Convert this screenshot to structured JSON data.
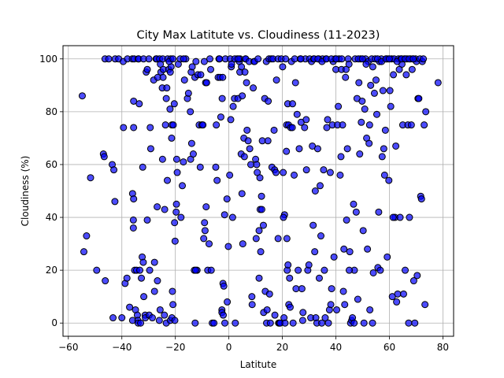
{
  "chart_data": {
    "type": "scatter",
    "title": "City Max Latitute vs. Cloudiness (11-2023)",
    "xlabel": "Latitute",
    "ylabel": "Cloudiness (%)",
    "xlim": [
      -62,
      84
    ],
    "ylim": [
      -5,
      105
    ],
    "xticks": [
      -60,
      -40,
      -20,
      0,
      20,
      40,
      60,
      80
    ],
    "yticks": [
      0,
      20,
      40,
      60,
      80,
      100
    ],
    "grid": true,
    "marker_color": "#0000ff",
    "edge_color": "#000000",
    "alpha": 0.7,
    "points": [
      [
        -54.8,
        86
      ],
      [
        -54.2,
        27
      ],
      [
        -53.2,
        33
      ],
      [
        -51.7,
        55
      ],
      [
        -49.4,
        20
      ],
      [
        -46.9,
        64
      ],
      [
        -46.6,
        63
      ],
      [
        -46.2,
        16
      ],
      [
        -46.3,
        100
      ],
      [
        -44.9,
        100
      ],
      [
        -43.6,
        60
      ],
      [
        -43.0,
        58
      ],
      [
        -42.6,
        46
      ],
      [
        -43.3,
        2
      ],
      [
        -42.5,
        100
      ],
      [
        -41.2,
        100
      ],
      [
        -40.0,
        2
      ],
      [
        -39.4,
        74
      ],
      [
        -39.5,
        99
      ],
      [
        -38.8,
        15
      ],
      [
        -38.1,
        17
      ],
      [
        -37.9,
        100
      ],
      [
        -36.1,
        100
      ],
      [
        -35.4,
        100
      ],
      [
        -37.1,
        6
      ],
      [
        -36.0,
        49
      ],
      [
        -35.6,
        47
      ],
      [
        -35.7,
        36
      ],
      [
        -35.7,
        39
      ],
      [
        -36.0,
        1
      ],
      [
        -35.6,
        74
      ],
      [
        -35.6,
        84
      ],
      [
        -35.2,
        20
      ],
      [
        -34.9,
        5
      ],
      [
        -34.5,
        20
      ],
      [
        -34.2,
        3
      ],
      [
        -34.0,
        1
      ],
      [
        -33.9,
        100
      ],
      [
        -33.7,
        100
      ],
      [
        -33.5,
        83
      ],
      [
        -33.9,
        0
      ],
      [
        -33.3,
        20
      ],
      [
        -33.0,
        0
      ],
      [
        -32.7,
        17
      ],
      [
        -32.4,
        25
      ],
      [
        -32.0,
        23
      ],
      [
        -32.2,
        59
      ],
      [
        -31.9,
        100
      ],
      [
        -31.8,
        10
      ],
      [
        -31.3,
        3
      ],
      [
        -31.2,
        2
      ],
      [
        -30.9,
        95
      ],
      [
        -30.5,
        96
      ],
      [
        -29.6,
        20
      ],
      [
        -30.5,
        39
      ],
      [
        -29.9,
        100
      ],
      [
        -29.8,
        3
      ],
      [
        -29.2,
        66
      ],
      [
        -29.4,
        74
      ],
      [
        -28.6,
        2
      ],
      [
        -28.1,
        92
      ],
      [
        -27.8,
        23
      ],
      [
        -27.8,
        12
      ],
      [
        -27.2,
        100
      ],
      [
        -27.0,
        100
      ],
      [
        -26.8,
        44
      ],
      [
        -26.7,
        16
      ],
      [
        -26.6,
        93
      ],
      [
        -25.9,
        100
      ],
      [
        -26.0,
        1
      ],
      [
        -25.7,
        5
      ],
      [
        -25.6,
        98
      ],
      [
        -25.4,
        95
      ],
      [
        -24.9,
        89
      ],
      [
        -24.8,
        62
      ],
      [
        -24.6,
        93
      ],
      [
        -24.7,
        100
      ],
      [
        -24.5,
        96
      ],
      [
        -24.1,
        3
      ],
      [
        -24.0,
        43
      ],
      [
        -23.7,
        75
      ],
      [
        -23.4,
        85
      ],
      [
        -23.2,
        89
      ],
      [
        -23.0,
        54
      ],
      [
        -22.9,
        100
      ],
      [
        -23.4,
        0
      ],
      [
        -22.5,
        96
      ],
      [
        -22.0,
        81
      ],
      [
        -21.9,
        1
      ],
      [
        -21.9,
        95
      ],
      [
        -21.7,
        100
      ],
      [
        -21.6,
        97
      ],
      [
        -21.4,
        70
      ],
      [
        -21.3,
        75
      ],
      [
        -21.1,
        12
      ],
      [
        -20.9,
        7
      ],
      [
        -20.8,
        75
      ],
      [
        -21.3,
        2
      ],
      [
        -20.4,
        83
      ],
      [
        -20.3,
        38
      ],
      [
        -20.1,
        31
      ],
      [
        -20.2,
        1
      ],
      [
        -19.7,
        42
      ],
      [
        -19.6,
        45
      ],
      [
        -19.5,
        62
      ],
      [
        -19.3,
        57
      ],
      [
        -18.9,
        98
      ],
      [
        -17.9,
        40
      ],
      [
        -17.4,
        52
      ],
      [
        -17.0,
        61
      ],
      [
        -16.6,
        92
      ],
      [
        -16.1,
        100
      ],
      [
        -15.5,
        85
      ],
      [
        -15.1,
        87
      ],
      [
        -14.4,
        80
      ],
      [
        -14.3,
        62
      ],
      [
        -14.1,
        95
      ],
      [
        -13.9,
        68
      ],
      [
        -13.7,
        97
      ],
      [
        -13.3,
        64
      ],
      [
        -12.7,
        93
      ],
      [
        -12.6,
        0
      ],
      [
        -12.3,
        99
      ],
      [
        -11.9,
        20
      ],
      [
        -11.6,
        94
      ],
      [
        -11.1,
        75
      ],
      [
        -10.7,
        59
      ],
      [
        -10.5,
        94
      ],
      [
        -10.1,
        75
      ],
      [
        -9.7,
        75
      ],
      [
        -9.4,
        32
      ],
      [
        -9.2,
        99
      ],
      [
        -9.1,
        38
      ],
      [
        -8.9,
        35
      ],
      [
        -8.7,
        91
      ],
      [
        -8.5,
        44
      ],
      [
        -8.3,
        91
      ],
      [
        -7.9,
        20
      ],
      [
        -7.4,
        30
      ],
      [
        -7.1,
        100
      ],
      [
        -6.8,
        96
      ],
      [
        -6.6,
        20
      ],
      [
        -6.2,
        0
      ],
      [
        -5.6,
        0
      ],
      [
        -4.9,
        59
      ],
      [
        -4.4,
        54
      ],
      [
        -4.0,
        93
      ],
      [
        -3.7,
        100
      ],
      [
        -3.3,
        93
      ],
      [
        -3.0,
        78
      ],
      [
        -2.6,
        5
      ],
      [
        -2.6,
        4
      ],
      [
        -2.3,
        93
      ],
      [
        -2.2,
        15
      ],
      [
        -2.1,
        3
      ],
      [
        -1.9,
        14
      ],
      [
        -1.6,
        41
      ],
      [
        -1.5,
        0
      ],
      [
        -1.3,
        100
      ],
      [
        -0.7,
        47
      ],
      [
        -0.6,
        8
      ],
      [
        -0.2,
        29
      ],
      [
        0.5,
        100
      ],
      [
        0.7,
        77
      ],
      [
        0.9,
        97
      ],
      [
        1.0,
        98
      ],
      [
        1.4,
        40
      ],
      [
        1.6,
        82
      ],
      [
        2.1,
        85
      ],
      [
        2.4,
        0
      ],
      [
        3.1,
        100
      ],
      [
        3.4,
        85
      ],
      [
        3.9,
        99
      ],
      [
        4.1,
        95
      ],
      [
        4.2,
        100
      ],
      [
        4.6,
        64
      ],
      [
        4.9,
        49
      ],
      [
        4.7,
        97
      ],
      [
        5.0,
        86
      ],
      [
        5.2,
        30
      ],
      [
        5.6,
        70
      ],
      [
        5.8,
        63
      ],
      [
        6.2,
        100
      ],
      [
        6.3,
        100
      ],
      [
        6.6,
        91
      ],
      [
        6.8,
        73
      ],
      [
        7.2,
        69
      ],
      [
        7.6,
        99
      ],
      [
        7.8,
        66
      ],
      [
        8.2,
        60
      ],
      [
        8.6,
        10
      ],
      [
        8.7,
        7
      ],
      [
        9.1,
        89
      ],
      [
        9.4,
        99
      ],
      [
        9.6,
        99
      ],
      [
        10.0,
        62
      ],
      [
        10.2,
        32
      ],
      [
        10.4,
        60
      ],
      [
        10.6,
        57
      ],
      [
        10.9,
        100
      ],
      [
        11.3,
        35
      ],
      [
        11.3,
        17
      ],
      [
        11.6,
        55
      ],
      [
        11.7,
        43
      ],
      [
        11.9,
        27
      ],
      [
        12.2,
        48
      ],
      [
        12.3,
        43
      ],
      [
        12.9,
        37
      ],
      [
        13.0,
        4
      ],
      [
        13.4,
        85
      ],
      [
        13.6,
        12
      ],
      [
        14.0,
        99
      ],
      [
        14.1,
        0
      ],
      [
        14.3,
        5
      ],
      [
        14.7,
        84
      ],
      [
        15.0,
        100
      ],
      [
        15.2,
        11
      ],
      [
        15.5,
        0
      ],
      [
        15.8,
        100
      ],
      [
        16.1,
        59
      ],
      [
        16.5,
        100
      ],
      [
        16.9,
        73
      ],
      [
        17.1,
        58
      ],
      [
        17.2,
        3
      ],
      [
        17.6,
        57
      ],
      [
        17.8,
        92
      ],
      [
        18.4,
        32
      ],
      [
        18.4,
        100
      ],
      [
        18.6,
        0
      ],
      [
        18.9,
        0
      ],
      [
        19.2,
        0
      ],
      [
        19.6,
        100
      ],
      [
        20.1,
        97
      ],
      [
        20.3,
        57
      ],
      [
        20.6,
        2
      ],
      [
        20.8,
        41
      ],
      [
        21.0,
        0
      ],
      [
        21.2,
        100
      ],
      [
        21.5,
        65
      ],
      [
        21.6,
        75
      ],
      [
        21.7,
        32
      ],
      [
        21.8,
        20
      ],
      [
        22.1,
        22
      ],
      [
        22.3,
        75
      ],
      [
        22.4,
        7
      ],
      [
        22.7,
        17
      ],
      [
        22.9,
        6
      ],
      [
        23.1,
        74
      ],
      [
        23.4,
        99
      ],
      [
        23.7,
        74
      ],
      [
        24.0,
        0
      ],
      [
        24.4,
        56
      ],
      [
        24.6,
        100
      ],
      [
        24.9,
        91
      ],
      [
        25.1,
        13
      ],
      [
        25.5,
        79
      ],
      [
        25.9,
        20
      ],
      [
        26.3,
        66
      ],
      [
        26.7,
        100
      ],
      [
        27.0,
        76
      ],
      [
        27.3,
        13
      ],
      [
        27.6,
        1
      ],
      [
        27.7,
        4
      ],
      [
        28.3,
        74
      ],
      [
        28.6,
        100
      ],
      [
        29.0,
        58
      ],
      [
        29.5,
        20
      ],
      [
        29.9,
        22
      ],
      [
        30.2,
        100
      ],
      [
        30.6,
        2
      ],
      [
        30.9,
        99
      ],
      [
        31.2,
        67
      ],
      [
        31.5,
        37
      ],
      [
        31.7,
        100
      ],
      [
        32.1,
        27
      ],
      [
        32.3,
        50
      ],
      [
        32.5,
        2
      ],
      [
        32.9,
        0
      ],
      [
        33.2,
        66
      ],
      [
        33.6,
        100
      ],
      [
        33.8,
        17
      ],
      [
        34.1,
        52
      ],
      [
        34.4,
        33
      ],
      [
        34.7,
        0
      ],
      [
        35.0,
        100
      ],
      [
        35.4,
        58
      ],
      [
        35.7,
        20
      ],
      [
        36.0,
        2
      ],
      [
        36.3,
        100
      ],
      [
        36.6,
        74
      ],
      [
        36.9,
        77
      ],
      [
        37.2,
        0
      ],
      [
        37.6,
        5
      ],
      [
        37.9,
        57
      ],
      [
        38.1,
        7
      ],
      [
        38.4,
        13
      ],
      [
        38.7,
        75
      ],
      [
        39.0,
        99
      ],
      [
        39.3,
        25
      ],
      [
        39.7,
        100
      ],
      [
        40.0,
        96
      ],
      [
        40.3,
        5
      ],
      [
        40.6,
        75
      ],
      [
        40.9,
        82
      ],
      [
        41.2,
        100
      ],
      [
        41.6,
        56
      ],
      [
        41.9,
        63
      ],
      [
        42.1,
        96
      ],
      [
        42.5,
        75
      ],
      [
        42.8,
        12
      ],
      [
        43.0,
        28
      ],
      [
        43.3,
        7
      ],
      [
        43.6,
        93
      ],
      [
        44.0,
        39
      ],
      [
        44.3,
        66
      ],
      [
        44.6,
        100
      ],
      [
        44.9,
        98
      ],
      [
        45.2,
        27
      ],
      [
        45.5,
        0
      ],
      [
        45.9,
        1
      ],
      [
        46.2,
        2
      ],
      [
        46.6,
        45
      ],
      [
        46.9,
        20
      ],
      [
        47.2,
        100
      ],
      [
        47.6,
        42
      ],
      [
        47.9,
        85
      ],
      [
        48.2,
        9
      ],
      [
        48.6,
        91
      ],
      [
        48.9,
        64
      ],
      [
        49.2,
        100
      ],
      [
        49.5,
        76
      ],
      [
        49.8,
        84
      ],
      [
        50.2,
        35
      ],
      [
        50.5,
        0
      ],
      [
        50.8,
        81
      ],
      [
        51.1,
        100
      ],
      [
        51.5,
        70
      ],
      [
        51.8,
        28
      ],
      [
        52.1,
        99
      ],
      [
        52.4,
        68
      ],
      [
        52.7,
        5
      ],
      [
        53.0,
        90
      ],
      [
        53.4,
        100
      ],
      [
        53.7,
        0
      ],
      [
        54.0,
        19
      ],
      [
        54.4,
        87
      ],
      [
        54.7,
        100
      ],
      [
        55.0,
        92
      ],
      [
        55.3,
        79
      ],
      [
        55.7,
        21
      ],
      [
        56.0,
        42
      ],
      [
        56.3,
        99
      ],
      [
        56.6,
        20
      ],
      [
        57.0,
        100
      ],
      [
        57.3,
        63
      ],
      [
        57.6,
        88
      ],
      [
        57.9,
        66
      ],
      [
        58.2,
        56
      ],
      [
        58.5,
        73
      ],
      [
        58.9,
        100
      ],
      [
        59.2,
        25
      ],
      [
        59.5,
        100
      ],
      [
        59.8,
        54
      ],
      [
        60.2,
        88
      ],
      [
        60.5,
        82
      ],
      [
        60.8,
        100
      ],
      [
        61.1,
        10
      ],
      [
        61.5,
        94
      ],
      [
        61.8,
        100
      ],
      [
        62.1,
        40
      ],
      [
        62.4,
        67
      ],
      [
        62.7,
        8
      ],
      [
        63.1,
        11
      ],
      [
        63.4,
        100
      ],
      [
        63.7,
        96
      ],
      [
        64.0,
        40
      ],
      [
        64.3,
        100
      ],
      [
        64.7,
        98
      ],
      [
        65.0,
        75
      ],
      [
        65.3,
        11
      ],
      [
        65.6,
        100
      ],
      [
        65.9,
        20
      ],
      [
        66.3,
        94
      ],
      [
        66.6,
        100
      ],
      [
        66.9,
        75
      ],
      [
        67.2,
        0
      ],
      [
        67.5,
        40
      ],
      [
        67.9,
        100
      ],
      [
        68.2,
        75
      ],
      [
        68.5,
        96
      ],
      [
        68.8,
        100
      ],
      [
        69.1,
        16
      ],
      [
        69.5,
        0
      ],
      [
        69.8,
        100
      ],
      [
        70.1,
        99
      ],
      [
        70.4,
        18
      ],
      [
        70.7,
        85
      ],
      [
        71.0,
        85
      ],
      [
        71.4,
        100
      ],
      [
        71.7,
        48
      ],
      [
        72.0,
        47
      ],
      [
        72.3,
        99
      ],
      [
        72.7,
        100
      ],
      [
        73.0,
        75
      ],
      [
        73.3,
        7
      ],
      [
        73.6,
        80
      ],
      [
        78.2,
        91
      ],
      [
        -22.3,
        99
      ],
      [
        -20.9,
        100
      ],
      [
        -18.2,
        100
      ],
      [
        -16.9,
        100
      ],
      [
        -12.9,
        20
      ],
      [
        -12.4,
        20
      ],
      [
        -4.7,
        75
      ],
      [
        -3.5,
        100
      ],
      [
        -2.5,
        85
      ],
      [
        0.3,
        56
      ],
      [
        2.2,
        100
      ],
      [
        3.6,
        100
      ],
      [
        6.0,
        95
      ],
      [
        12.5,
        69
      ],
      [
        14.6,
        69
      ],
      [
        20.4,
        40
      ],
      [
        22.0,
        83
      ],
      [
        23.8,
        83
      ],
      [
        26.9,
        100
      ],
      [
        28.9,
        77
      ],
      [
        31.9,
        100
      ],
      [
        33.3,
        100
      ],
      [
        34.8,
        99
      ],
      [
        36.5,
        100
      ],
      [
        38.3,
        100
      ],
      [
        40.1,
        100
      ],
      [
        42.2,
        100
      ],
      [
        43.8,
        96
      ],
      [
        45.0,
        20
      ],
      [
        46.8,
        0
      ],
      [
        48.4,
        100
      ],
      [
        49.9,
        100
      ],
      [
        51.3,
        98
      ],
      [
        52.6,
        75
      ],
      [
        53.8,
        97
      ],
      [
        55.6,
        100
      ],
      [
        57.1,
        99
      ],
      [
        58.7,
        100
      ],
      [
        60.0,
        100
      ],
      [
        61.4,
        40
      ],
      [
        62.9,
        99
      ],
      [
        64.6,
        100
      ],
      [
        66.0,
        100
      ],
      [
        67.4,
        100
      ],
      [
        68.9,
        100
      ]
    ]
  }
}
